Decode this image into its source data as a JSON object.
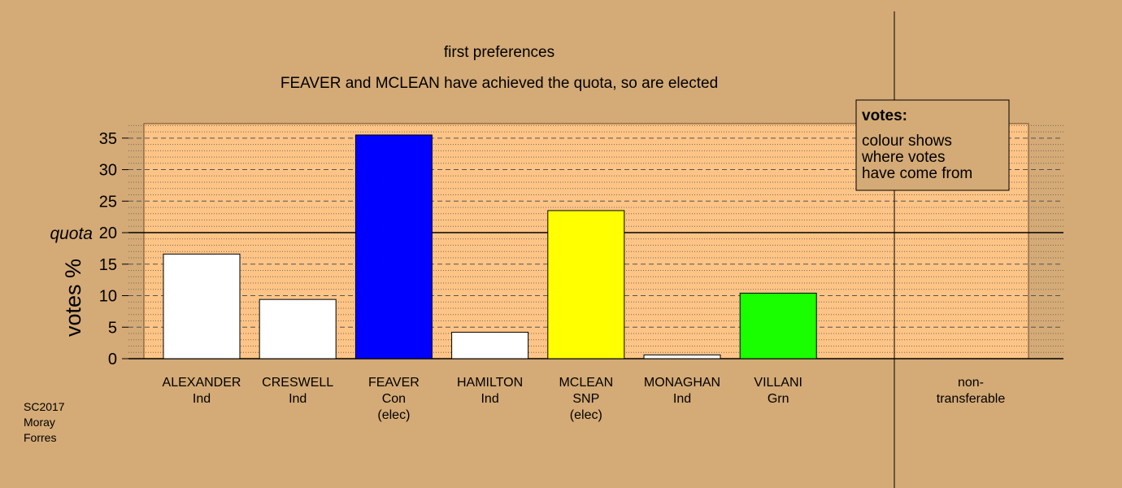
{
  "chart_data": {
    "type": "bar",
    "title": "first preferences",
    "subtitle": "FEAVER and MCLEAN have achieved the quota, so are elected",
    "ylabel": "votes %",
    "ylim": [
      0,
      37.3
    ],
    "yticks": [
      0,
      5,
      10,
      15,
      20,
      25,
      30,
      35
    ],
    "quota": 20,
    "quota_label": "quota",
    "grid": "dashed major, dotted minor",
    "categories": [
      {
        "name": "ALEXANDER",
        "party": "Ind",
        "note": "",
        "value": 16.6,
        "color": "#ffffff"
      },
      {
        "name": "CRESWELL",
        "party": "Ind",
        "note": "",
        "value": 9.4,
        "color": "#ffffff"
      },
      {
        "name": "FEAVER",
        "party": "Con",
        "note": "(elec)",
        "value": 35.5,
        "color": "#0000ff"
      },
      {
        "name": "HAMILTON",
        "party": "Ind",
        "note": "",
        "value": 4.2,
        "color": "#ffffff"
      },
      {
        "name": "MCLEAN",
        "party": "SNP",
        "note": "(elec)",
        "value": 23.5,
        "color": "#ffff00"
      },
      {
        "name": "MONAGHAN",
        "party": "Ind",
        "note": "",
        "value": 0.6,
        "color": "#ffffff"
      },
      {
        "name": "VILLANI",
        "party": "Grn",
        "note": "",
        "value": 10.4,
        "color": "#19ff00"
      }
    ],
    "non_transferable": {
      "label_line1": "non-",
      "label_line2": "transferable",
      "value": 0
    },
    "legend": {
      "position": "top-right",
      "title": "votes:",
      "lines": [
        "colour shows",
        "where votes",
        "have come from"
      ]
    },
    "colors": {
      "background": "#d4aa76",
      "plot_area": "#fdc486"
    }
  },
  "footer": {
    "line1": "SC2017",
    "line2": "Moray",
    "line3": "Forres"
  }
}
